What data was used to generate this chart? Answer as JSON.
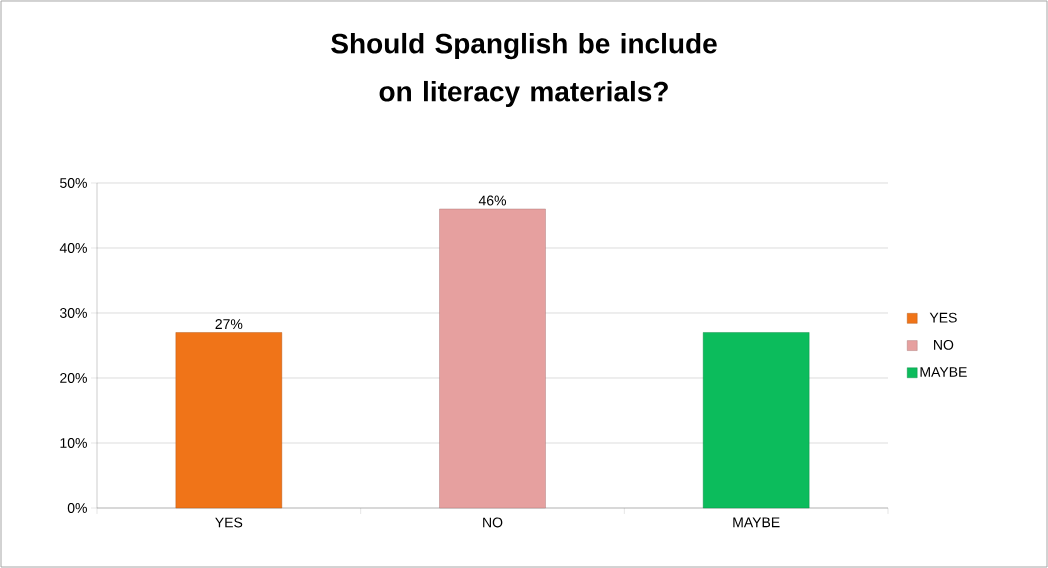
{
  "chart_data": {
    "type": "bar",
    "title": "Should Spanglish be include on literacy materials?",
    "categories": [
      "YES",
      "NO",
      "MAYBE"
    ],
    "series": [
      {
        "name": "YES",
        "color": "#f07418",
        "values": [
          27,
          null,
          null
        ],
        "value_labels": [
          "27%",
          null,
          null
        ]
      },
      {
        "name": "NO",
        "color": "#e6a09f",
        "values": [
          null,
          46,
          null
        ],
        "value_labels": [
          null,
          "46%",
          null
        ]
      },
      {
        "name": "MAYBE",
        "color": "#0cbc5c",
        "values": [
          null,
          null,
          27
        ]
      }
    ],
    "ylim": [
      0,
      50
    ],
    "yticks": [
      {
        "value": 0,
        "label": "0%"
      },
      {
        "value": 10,
        "label": "10%"
      },
      {
        "value": 20,
        "label": "20%"
      },
      {
        "value": 30,
        "label": "30%"
      },
      {
        "value": 40,
        "label": "40%"
      },
      {
        "value": 50,
        "label": "50%"
      }
    ],
    "grid": "y",
    "legend": "right"
  }
}
